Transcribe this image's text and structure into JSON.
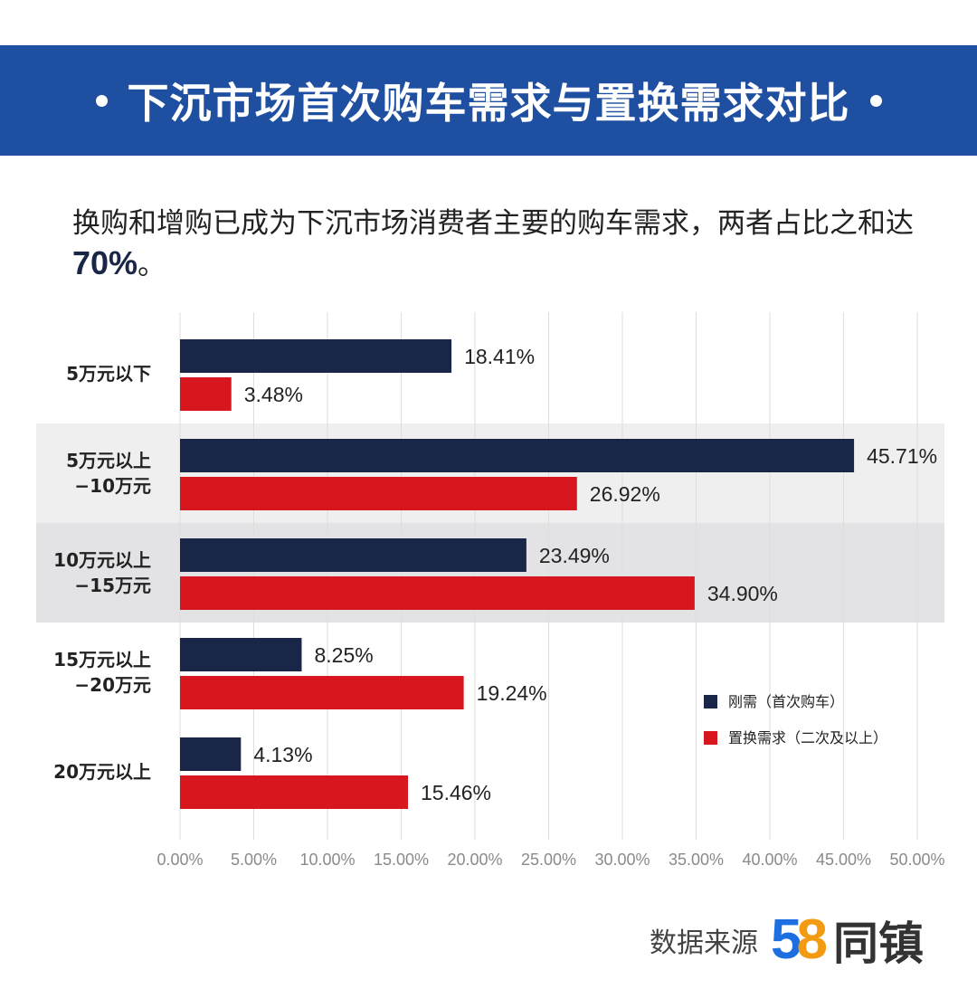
{
  "header": {
    "title": "下沉市场首次购车需求与置换需求对比"
  },
  "subtitle": {
    "text_part1": "换购和增购已成为下沉市场消费者主要的购车需求，两者占比之和达",
    "highlight": "70%",
    "text_part2": "。"
  },
  "colors": {
    "banner": "#1f4fa0",
    "series_first": "#1a2648",
    "series_replace": "#d7161e",
    "band_light": "#efeff0",
    "band_dark": "#e3e3e5"
  },
  "chart_data": {
    "type": "bar",
    "orientation": "horizontal",
    "categories": [
      "5万元以下",
      "5万元以上\n−10万元",
      "10万元以上\n−15万元",
      "15万元以上\n−20万元",
      "20万元以上"
    ],
    "series": [
      {
        "name": "刚需（首次购车）",
        "values": [
          18.41,
          45.71,
          23.49,
          8.25,
          4.13
        ],
        "labels": [
          "18.41%",
          "45.71%",
          "23.49%",
          "8.25%",
          "4.13%"
        ]
      },
      {
        "name": "置换需求（二次及以上）",
        "values": [
          3.48,
          26.92,
          34.9,
          19.24,
          15.46
        ],
        "labels": [
          "3.48%",
          "26.92%",
          "34.90%",
          "19.24%",
          "15.46%"
        ]
      }
    ],
    "xlim": [
      0,
      50
    ],
    "xticks": [
      "0.00%",
      "5.00%",
      "10.00%",
      "15.00%",
      "20.00%",
      "25.00%",
      "30.00%",
      "35.00%",
      "40.00%",
      "45.00%",
      "50.00%"
    ],
    "grid": true,
    "legend": "right"
  },
  "footer": {
    "source_label": "数据来源",
    "logo_digit_5": "5",
    "logo_digit_8": "8",
    "logo_brand": "同镇"
  }
}
